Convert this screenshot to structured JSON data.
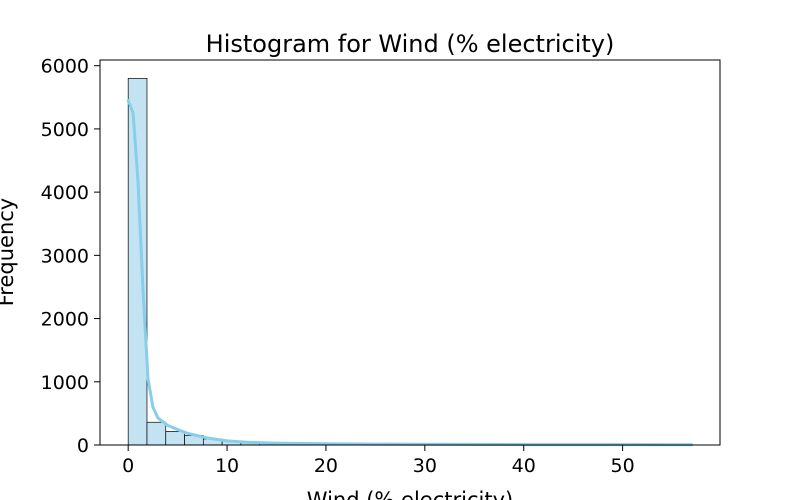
{
  "chart_data": {
    "type": "bar",
    "subtype": "histogram-with-kde",
    "title": "Histogram for Wind (% electricity)",
    "xlabel": "Wind (% electricity)",
    "ylabel": "Frequency",
    "xlim": [
      -2.85,
      59.85
    ],
    "ylim": [
      0,
      6090
    ],
    "xticks": [
      0,
      10,
      20,
      30,
      40,
      50
    ],
    "yticks": [
      0,
      1000,
      2000,
      3000,
      4000,
      5000,
      6000
    ],
    "grid": false,
    "bin_width": 1.9,
    "bins": [
      {
        "x0": 0.0,
        "count": 5800
      },
      {
        "x0": 1.9,
        "count": 360
      },
      {
        "x0": 3.8,
        "count": 215
      },
      {
        "x0": 5.7,
        "count": 150
      },
      {
        "x0": 7.6,
        "count": 95
      },
      {
        "x0": 9.5,
        "count": 60
      },
      {
        "x0": 11.4,
        "count": 45
      },
      {
        "x0": 13.3,
        "count": 35
      },
      {
        "x0": 15.2,
        "count": 30
      },
      {
        "x0": 17.1,
        "count": 25
      },
      {
        "x0": 19.0,
        "count": 20
      },
      {
        "x0": 20.9,
        "count": 18
      },
      {
        "x0": 22.8,
        "count": 15
      },
      {
        "x0": 24.7,
        "count": 12
      },
      {
        "x0": 26.6,
        "count": 10
      },
      {
        "x0": 28.5,
        "count": 10
      },
      {
        "x0": 30.4,
        "count": 8
      },
      {
        "x0": 32.3,
        "count": 8
      },
      {
        "x0": 34.2,
        "count": 6
      },
      {
        "x0": 36.1,
        "count": 5
      },
      {
        "x0": 38.0,
        "count": 5
      },
      {
        "x0": 39.9,
        "count": 4
      },
      {
        "x0": 41.8,
        "count": 4
      },
      {
        "x0": 43.7,
        "count": 3
      },
      {
        "x0": 45.6,
        "count": 3
      },
      {
        "x0": 47.5,
        "count": 4
      },
      {
        "x0": 49.4,
        "count": 3
      },
      {
        "x0": 51.3,
        "count": 2
      },
      {
        "x0": 53.2,
        "count": 2
      },
      {
        "x0": 55.1,
        "count": 1
      }
    ],
    "kde": {
      "x": [
        0,
        0.5,
        1,
        1.5,
        2,
        2.5,
        3,
        4,
        5,
        6,
        8,
        10,
        12,
        15,
        20,
        25,
        30,
        35,
        40,
        45,
        50,
        55,
        57
      ],
      "y": [
        5450,
        5250,
        4150,
        2450,
        1050,
        600,
        430,
        310,
        245,
        185,
        110,
        65,
        42,
        30,
        20,
        14,
        11,
        9,
        7,
        6,
        6,
        4,
        3
      ]
    },
    "bar_fill": "#c3e3f2",
    "bar_edge": "#000000",
    "kde_color": "#87ceeb"
  }
}
